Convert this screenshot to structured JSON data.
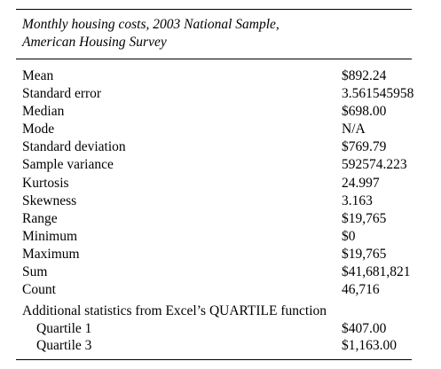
{
  "caption": {
    "line1": "Monthly housing costs, 2003 National Sample,",
    "line2": "American Housing Survey"
  },
  "stats": [
    {
      "label": "Mean",
      "value": "$892.24"
    },
    {
      "label": "Standard error",
      "value": "3.561545958"
    },
    {
      "label": "Median",
      "value": "$698.00"
    },
    {
      "label": "Mode",
      "value": "N/A"
    },
    {
      "label": "Standard deviation",
      "value": "$769.79"
    },
    {
      "label": "Sample variance",
      "value": "592574.223"
    },
    {
      "label": "Kurtosis",
      "value": "24.997"
    },
    {
      "label": "Skewness",
      "value": "3.163"
    },
    {
      "label": "Range",
      "value": "$19,765"
    },
    {
      "label": "Minimum",
      "value": "$0"
    },
    {
      "label": "Maximum",
      "value": "$19,765"
    },
    {
      "label": "Sum",
      "value": "$41,681,821"
    },
    {
      "label": "Count",
      "value": "46,716"
    }
  ],
  "additional_heading": "Additional statistics from Excel’s QUARTILE function",
  "quartiles": [
    {
      "label": "Quartile 1",
      "value": "$407.00"
    },
    {
      "label": "Quartile 3",
      "value": "$1,163.00"
    }
  ]
}
